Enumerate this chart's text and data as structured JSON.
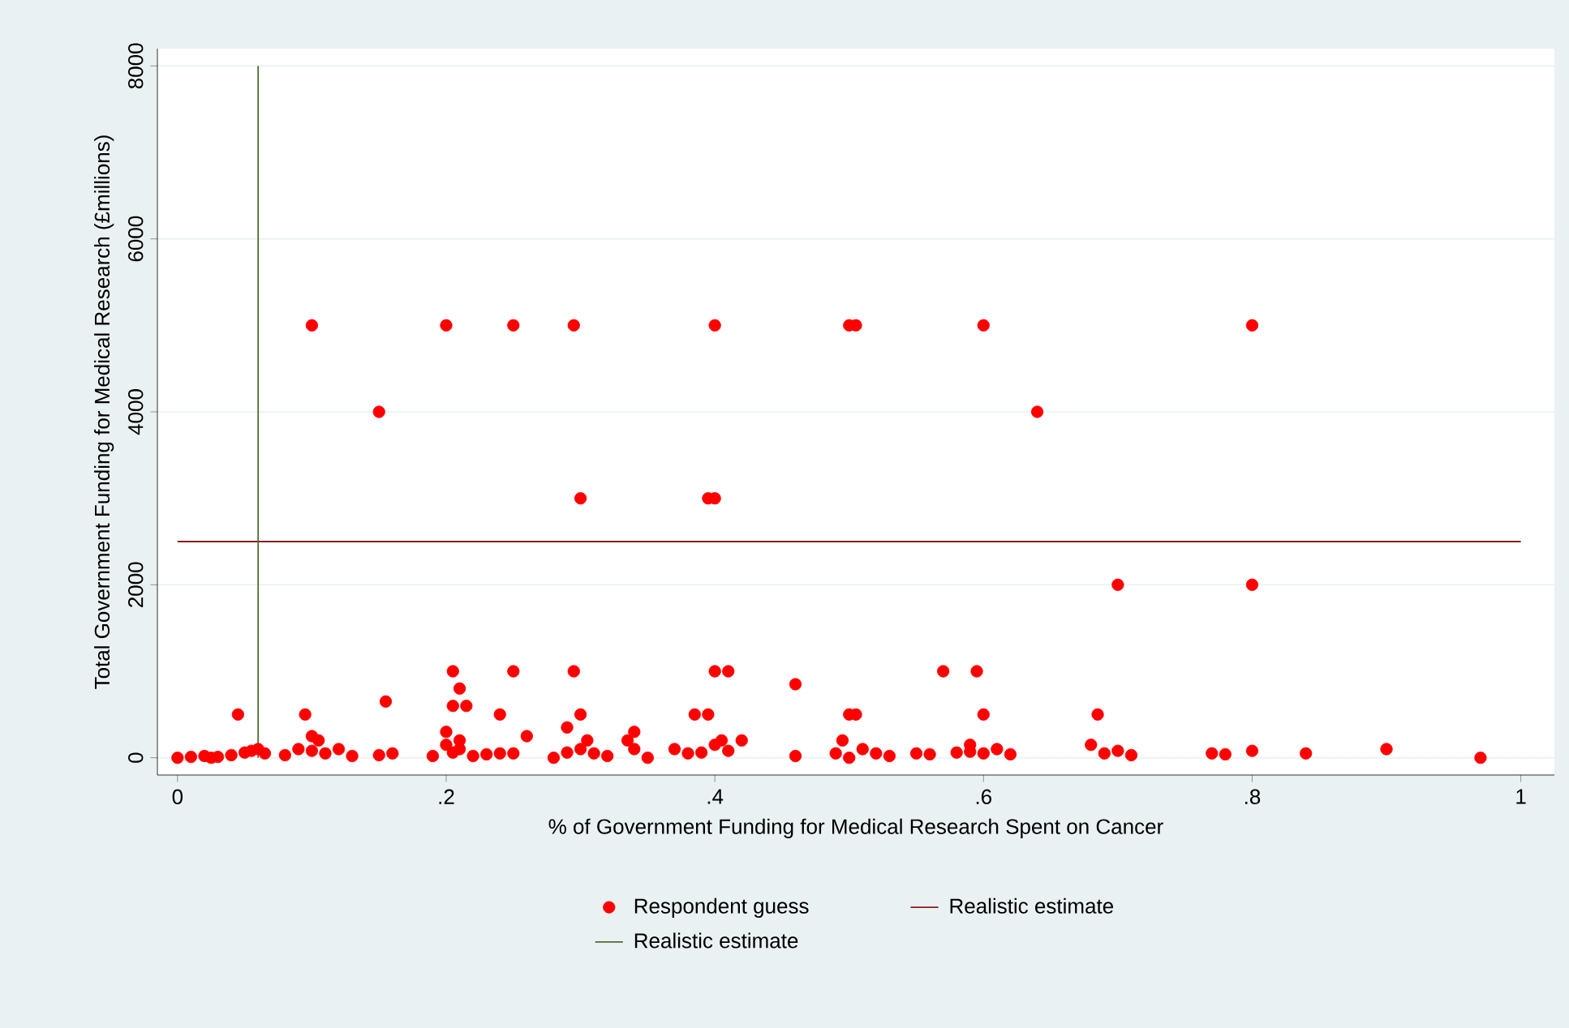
{
  "chart_data": {
    "type": "scatter",
    "xlabel": "% of Government Funding for Medical Research Spent on Cancer",
    "ylabel": "Total Government Funding for Medical Research (£millions)",
    "xlim": [
      -0.015,
      1.025
    ],
    "ylim": [
      -200,
      8200
    ],
    "xticks": [
      0,
      {
        "value": 0.2,
        "label": ".2"
      },
      {
        "value": 0.4,
        "label": ".4"
      },
      {
        "value": 0.6,
        "label": ".6"
      },
      {
        "value": 0.8,
        "label": ".8"
      },
      1
    ],
    "yticks": [
      0,
      2000,
      4000,
      6000,
      8000
    ],
    "grid": "y",
    "legend": "bottom",
    "series": [
      {
        "name": "Respondent guess",
        "type": "scatter",
        "marker": "circle",
        "color": "#ff0000",
        "x": [
          0.1,
          0.2,
          0.25,
          0.295,
          0.4,
          0.5,
          0.505,
          0.6,
          0.8,
          0.15,
          0.64,
          0.3,
          0.395,
          0.4,
          0.7,
          0.8,
          0.205,
          0.25,
          0.295,
          0.4,
          0.41,
          0.57,
          0.595,
          0.46,
          0.155,
          0.21,
          0.205,
          0.215,
          0.045,
          0.095,
          0.24,
          0.3,
          0.385,
          0.395,
          0.5,
          0.505,
          0.6,
          0.685,
          0.29,
          0.34,
          0.2,
          0.1,
          0.105,
          0.21,
          0.305,
          0.335,
          0.405,
          0.495,
          0.59,
          0.0,
          0.01,
          0.02,
          0.025,
          0.03,
          0.04,
          0.05,
          0.055,
          0.06,
          0.065,
          0.08,
          0.09,
          0.1,
          0.11,
          0.12,
          0.13,
          0.15,
          0.16,
          0.19,
          0.2,
          0.205,
          0.21,
          0.22,
          0.23,
          0.24,
          0.25,
          0.26,
          0.28,
          0.29,
          0.3,
          0.31,
          0.32,
          0.34,
          0.35,
          0.37,
          0.38,
          0.39,
          0.4,
          0.41,
          0.42,
          0.46,
          0.49,
          0.5,
          0.51,
          0.52,
          0.53,
          0.55,
          0.56,
          0.58,
          0.59,
          0.6,
          0.61,
          0.62,
          0.68,
          0.69,
          0.7,
          0.71,
          0.77,
          0.78,
          0.8,
          0.84,
          0.9,
          0.97
        ],
        "values": [
          5000,
          5000,
          5000,
          5000,
          5000,
          5000,
          5000,
          5000,
          5000,
          4000,
          4000,
          3000,
          3000,
          3000,
          2000,
          2000,
          1000,
          1000,
          1000,
          1000,
          1000,
          1000,
          1000,
          850,
          650,
          800,
          600,
          600,
          500,
          500,
          500,
          500,
          500,
          500,
          500,
          500,
          500,
          500,
          350,
          300,
          300,
          250,
          200,
          200,
          200,
          200,
          200,
          200,
          150,
          0,
          10,
          20,
          0,
          10,
          30,
          60,
          80,
          100,
          50,
          30,
          100,
          80,
          50,
          100,
          20,
          30,
          50,
          20,
          150,
          60,
          100,
          20,
          40,
          50,
          50,
          250,
          0,
          60,
          100,
          50,
          20,
          100,
          0,
          100,
          50,
          60,
          150,
          80,
          200,
          20,
          50,
          0,
          100,
          50,
          20,
          50,
          40,
          60,
          70,
          50,
          100,
          40,
          150,
          50,
          80,
          30,
          50,
          40,
          80,
          50,
          100,
          0
        ]
      },
      {
        "name": "Realistic estimate",
        "type": "line",
        "color": "#8b1c1c",
        "line_style": "solid",
        "x": [
          0,
          1
        ],
        "values": [
          2500,
          2500
        ]
      },
      {
        "name": "Realistic estimate",
        "type": "line",
        "color": "#4f6b2f",
        "line_style": "solid",
        "x": [
          0.06,
          0.06
        ],
        "values": [
          0,
          8000
        ]
      }
    ]
  }
}
